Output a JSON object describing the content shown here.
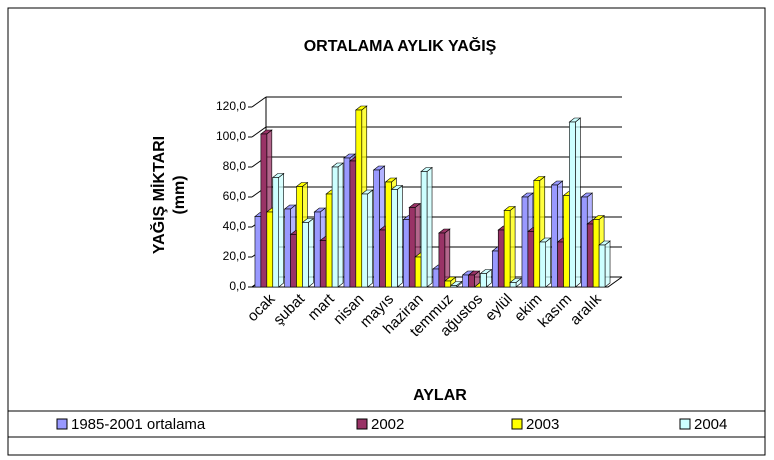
{
  "chart_data": {
    "type": "bar",
    "title": "ORTALAMA AYLIK YAĞIŞ",
    "x_label": "AYLAR",
    "y_label": [
      "YAĞIŞ MİKTARI",
      "(mm)"
    ],
    "categories": [
      "ocak",
      "şubat",
      "mart",
      "nisan",
      "mayıs",
      "haziran",
      "temmuz",
      "ağustos",
      "eylül",
      "ekim",
      "kasım",
      "aralık"
    ],
    "series": [
      {
        "name": "1985-2001 ortalama",
        "color": "#9999ff",
        "values": [
          47,
          52,
          50,
          86,
          78,
          45,
          12,
          8,
          24,
          60,
          68,
          60
        ]
      },
      {
        "name": "2002",
        "color": "#993366",
        "values": [
          102,
          35,
          31,
          84,
          38,
          53,
          36,
          8,
          38,
          37,
          30,
          42
        ]
      },
      {
        "name": "2003",
        "color": "#ffff00",
        "values": [
          50,
          67,
          62,
          118,
          70,
          20,
          4,
          0,
          51,
          71,
          61,
          45
        ]
      },
      {
        "name": "2004",
        "color": "#ccffff",
        "values": [
          73,
          43,
          80,
          62,
          65,
          77,
          1,
          9,
          3,
          30,
          110,
          28
        ]
      }
    ],
    "ylim": [
      0,
      120
    ],
    "yticks": [
      {
        "value": 0,
        "label": "0,0"
      },
      {
        "value": 20,
        "label": "20,0"
      },
      {
        "value": 40,
        "label": "40,0"
      },
      {
        "value": 60,
        "label": "60,0"
      },
      {
        "value": 80,
        "label": "80,0"
      },
      {
        "value": 100,
        "label": "100,0"
      },
      {
        "value": 120,
        "label": "120,0"
      }
    ],
    "grid": true
  }
}
